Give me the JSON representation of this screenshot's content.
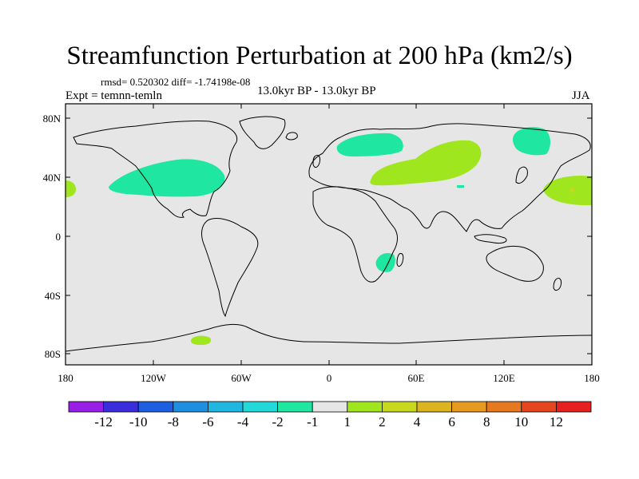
{
  "title": "Streamfunction Perturbation at 200 hPa (km2/s)",
  "stats_line": "rmsd= 0.520302 diff= -1.74198e-08",
  "experiment_line": "Expt = temnn-temln",
  "subtitle": "13.0kyr BP - 13.0kyr BP",
  "season": "JJA",
  "map": {
    "background_color": "#e6e6e6",
    "lat_ticks": [
      "80N",
      "40N",
      "0",
      "40S",
      "80S"
    ],
    "lon_ticks": [
      "180",
      "120W",
      "60W",
      "0",
      "60E",
      "120E",
      "180"
    ]
  },
  "colorbar": {
    "colors": [
      "#9a1fe6",
      "#3a2ddb",
      "#1d5fe0",
      "#1e8fe0",
      "#1fb6e0",
      "#22d8d8",
      "#1fe6a0",
      "#e6e6e6",
      "#a0e61f",
      "#c8d81f",
      "#dcb41f",
      "#e69a1f",
      "#e6781f",
      "#e6461f",
      "#e61f1f"
    ],
    "labels": [
      "-12",
      "-10",
      "-8",
      "-6",
      "-4",
      "-2",
      "-1",
      "1",
      "2",
      "4",
      "6",
      "8",
      "10",
      "12"
    ]
  }
}
